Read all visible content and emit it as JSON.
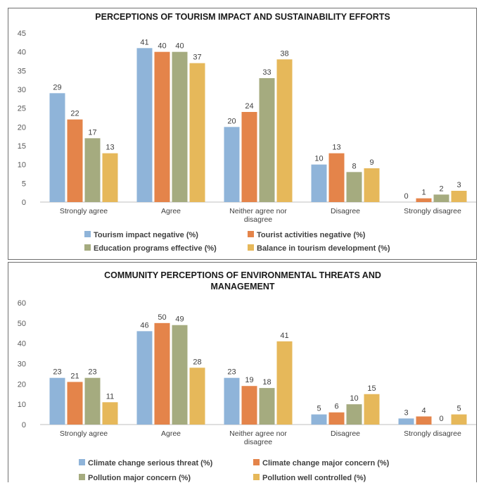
{
  "chart_data": [
    {
      "type": "bar",
      "title": "PERCEPTIONS OF TOURISM IMPACT AND SUSTAINABILITY EFFORTS",
      "categories": [
        "Strongly agree",
        "Agree",
        "Neither agree nor disagree",
        "Disagree",
        "Strongly disagree"
      ],
      "series": [
        {
          "name": "Tourism impact negative (%)",
          "color": "#8fb4d9",
          "values": [
            29,
            41,
            20,
            10,
            0
          ]
        },
        {
          "name": "Tourist activities negative (%)",
          "color": "#e4844a",
          "values": [
            22,
            40,
            24,
            13,
            1
          ]
        },
        {
          "name": "Education programs effective (%)",
          "color": "#a5ab7f",
          "values": [
            17,
            40,
            33,
            8,
            2
          ]
        },
        {
          "name": "Balance in tourism development (%)",
          "color": "#e6b85a",
          "values": [
            13,
            37,
            38,
            9,
            3
          ]
        }
      ],
      "ylim": [
        0,
        45
      ],
      "yticks": [
        0,
        5,
        10,
        15,
        20,
        25,
        30,
        35,
        40,
        45
      ],
      "grid": false,
      "legend": "bottom"
    },
    {
      "type": "bar",
      "title": "COMMUNITY PERCEPTIONS OF ENVIRONMENTAL THREATS AND MANAGEMENT",
      "categories": [
        "Strongly agree",
        "Agree",
        "Neither agree nor disagree",
        "Disagree",
        "Strongly disagree"
      ],
      "series": [
        {
          "name": "Climate change serious threat (%)",
          "color": "#8fb4d9",
          "values": [
            23,
            46,
            23,
            5,
            3
          ]
        },
        {
          "name": "Climate change major concern (%)",
          "color": "#e4844a",
          "values": [
            21,
            50,
            19,
            6,
            4
          ]
        },
        {
          "name": "Pollution major concern (%)",
          "color": "#a5ab7f",
          "values": [
            23,
            49,
            18,
            10,
            0
          ]
        },
        {
          "name": "Pollution well controlled (%)",
          "color": "#e6b85a",
          "values": [
            11,
            28,
            41,
            15,
            5
          ]
        }
      ],
      "ylim": [
        0,
        60
      ],
      "yticks": [
        0,
        10,
        20,
        30,
        40,
        50,
        60
      ],
      "grid": false,
      "legend": "bottom"
    }
  ]
}
